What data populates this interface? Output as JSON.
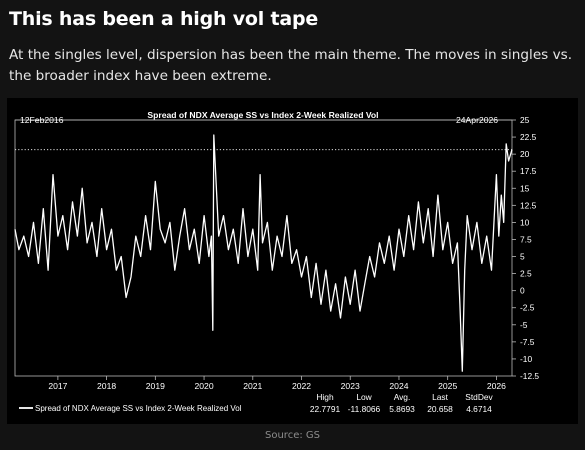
{
  "headline": "This has been a high vol tape",
  "subtext": "At the singles level, dispersion has been the main theme. The moves in singles vs. the broader index have been extreme.",
  "source": "Source: GS",
  "colors": {
    "background": "#131313",
    "panel": "#000000",
    "line": "#ffffff"
  },
  "chart_data": {
    "type": "line",
    "title": "Spread of NDX Average SS vs Index 2-Week Realized Vol",
    "start_label": "12Feb2016",
    "end_label": "24Apr2026",
    "x_ticks": [
      "2017",
      "2018",
      "2019",
      "2020",
      "2021",
      "2022",
      "2023",
      "2024",
      "2025",
      "2026"
    ],
    "y_ticks": [
      "25",
      "22.5",
      "20",
      "17.5",
      "15",
      "12.5",
      "10",
      "7.5",
      "5",
      "2.5",
      "0",
      "-2.5",
      "-5",
      "-7.5",
      "-10",
      "-12.5"
    ],
    "ylim": [
      -12.5,
      25
    ],
    "xlim": [
      2016.12,
      2026.32
    ],
    "reference_line": 20.658,
    "grid": false,
    "legend_position": "bottom-left",
    "series": [
      {
        "name": "Spread of NDX Average SS vs Index 2-Week Realized Vol",
        "points": [
          [
            2016.12,
            9
          ],
          [
            2016.2,
            6
          ],
          [
            2016.3,
            8
          ],
          [
            2016.4,
            5
          ],
          [
            2016.5,
            10
          ],
          [
            2016.6,
            4
          ],
          [
            2016.7,
            12
          ],
          [
            2016.8,
            3
          ],
          [
            2016.9,
            17
          ],
          [
            2017.0,
            8
          ],
          [
            2017.1,
            11
          ],
          [
            2017.2,
            6
          ],
          [
            2017.3,
            13
          ],
          [
            2017.4,
            8
          ],
          [
            2017.5,
            15
          ],
          [
            2017.6,
            7
          ],
          [
            2017.7,
            10
          ],
          [
            2017.8,
            5
          ],
          [
            2017.9,
            12
          ],
          [
            2018.0,
            6
          ],
          [
            2018.1,
            9
          ],
          [
            2018.2,
            3
          ],
          [
            2018.3,
            5
          ],
          [
            2018.4,
            -1
          ],
          [
            2018.5,
            2
          ],
          [
            2018.6,
            8
          ],
          [
            2018.7,
            5
          ],
          [
            2018.8,
            11
          ],
          [
            2018.9,
            6
          ],
          [
            2019.0,
            16
          ],
          [
            2019.1,
            9
          ],
          [
            2019.2,
            7
          ],
          [
            2019.3,
            10
          ],
          [
            2019.4,
            3
          ],
          [
            2019.5,
            8
          ],
          [
            2019.6,
            12
          ],
          [
            2019.7,
            6
          ],
          [
            2019.8,
            9
          ],
          [
            2019.9,
            4
          ],
          [
            2020.0,
            11
          ],
          [
            2020.1,
            5
          ],
          [
            2020.15,
            8
          ],
          [
            2020.18,
            -5.8
          ],
          [
            2020.2,
            22.8
          ],
          [
            2020.3,
            8
          ],
          [
            2020.4,
            11
          ],
          [
            2020.5,
            6
          ],
          [
            2020.6,
            9
          ],
          [
            2020.7,
            4
          ],
          [
            2020.8,
            12
          ],
          [
            2020.9,
            5
          ],
          [
            2021.0,
            9
          ],
          [
            2021.1,
            3
          ],
          [
            2021.15,
            17
          ],
          [
            2021.2,
            7
          ],
          [
            2021.3,
            10
          ],
          [
            2021.4,
            3
          ],
          [
            2021.5,
            8
          ],
          [
            2021.6,
            5
          ],
          [
            2021.7,
            11
          ],
          [
            2021.8,
            4
          ],
          [
            2021.9,
            6
          ],
          [
            2022.0,
            2
          ],
          [
            2022.1,
            5
          ],
          [
            2022.2,
            -1
          ],
          [
            2022.3,
            4
          ],
          [
            2022.4,
            -2
          ],
          [
            2022.5,
            3
          ],
          [
            2022.6,
            -3
          ],
          [
            2022.7,
            1
          ],
          [
            2022.8,
            -4
          ],
          [
            2022.9,
            2
          ],
          [
            2023.0,
            -2
          ],
          [
            2023.1,
            3
          ],
          [
            2023.2,
            -3
          ],
          [
            2023.3,
            1
          ],
          [
            2023.4,
            5
          ],
          [
            2023.5,
            2
          ],
          [
            2023.6,
            7
          ],
          [
            2023.7,
            4
          ],
          [
            2023.8,
            8
          ],
          [
            2023.9,
            3
          ],
          [
            2024.0,
            9
          ],
          [
            2024.1,
            5
          ],
          [
            2024.2,
            11
          ],
          [
            2024.3,
            6
          ],
          [
            2024.4,
            13
          ],
          [
            2024.5,
            7
          ],
          [
            2024.6,
            12
          ],
          [
            2024.7,
            5
          ],
          [
            2024.8,
            14
          ],
          [
            2024.9,
            6
          ],
          [
            2025.0,
            10
          ],
          [
            2025.1,
            4
          ],
          [
            2025.2,
            7
          ],
          [
            2025.25,
            -2
          ],
          [
            2025.3,
            -11.8
          ],
          [
            2025.35,
            3
          ],
          [
            2025.4,
            11
          ],
          [
            2025.5,
            6
          ],
          [
            2025.6,
            10
          ],
          [
            2025.7,
            4
          ],
          [
            2025.8,
            8
          ],
          [
            2025.9,
            3
          ],
          [
            2026.0,
            17
          ],
          [
            2026.05,
            8
          ],
          [
            2026.1,
            14
          ],
          [
            2026.15,
            10
          ],
          [
            2026.2,
            21.5
          ],
          [
            2026.25,
            19
          ],
          [
            2026.32,
            20.658
          ]
        ]
      }
    ],
    "stats": {
      "headers": [
        "High",
        "Low",
        "Avg.",
        "Last",
        "StdDev"
      ],
      "values": [
        "22.7791",
        "-11.8066",
        "5.8693",
        "20.658",
        "4.6714"
      ]
    }
  }
}
